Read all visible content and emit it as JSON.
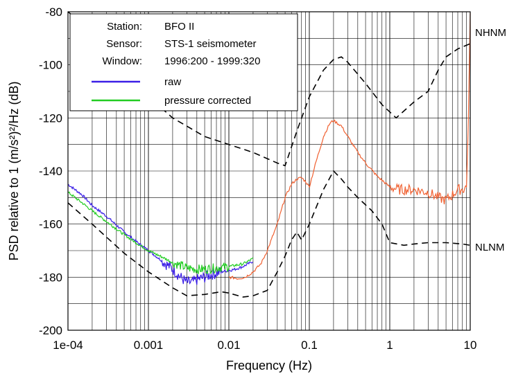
{
  "chart_data": {
    "type": "line",
    "xlabel": "Frequency (Hz)",
    "ylabel": "PSD relative to 1 (m/s²)²/Hz (dB)",
    "x_scale": "log",
    "xlim": [
      0.0001,
      10
    ],
    "ylim": [
      -200,
      -80
    ],
    "x_ticks": [
      {
        "value": 0.0001,
        "label": "1e-04"
      },
      {
        "value": 0.001,
        "label": "0.001"
      },
      {
        "value": 0.01,
        "label": "0.01"
      },
      {
        "value": 0.1,
        "label": "0.1"
      },
      {
        "value": 1,
        "label": "1"
      },
      {
        "value": 10,
        "label": "10"
      }
    ],
    "y_ticks": [
      {
        "value": -80,
        "label": "-80"
      },
      {
        "value": -100,
        "label": "-100"
      },
      {
        "value": -120,
        "label": "-120"
      },
      {
        "value": -140,
        "label": "-140"
      },
      {
        "value": -160,
        "label": "-160"
      },
      {
        "value": -180,
        "label": "-180"
      },
      {
        "value": -200,
        "label": "-200"
      }
    ],
    "grid": true,
    "legend": {
      "placement": "top-left",
      "rows": [
        {
          "key": "Station:",
          "value": "BFO II"
        },
        {
          "key": "Sensor:",
          "value": "STS-1 seismometer"
        },
        {
          "key": "Window:",
          "value": "1996:200 - 1999:320"
        }
      ],
      "entries": [
        {
          "label": "raw",
          "color": "#3a1ee6"
        },
        {
          "label": "pressure corrected",
          "color": "#22cc22"
        }
      ]
    },
    "series": [
      {
        "name": "raw",
        "color": "#3a1ee6",
        "style": "solid",
        "x": [
          0.0001,
          0.00015,
          0.0002,
          0.0003,
          0.0005,
          0.0007,
          0.001,
          0.0015,
          0.002,
          0.0025,
          0.003,
          0.0035,
          0.004,
          0.005,
          0.006,
          0.008,
          0.01,
          0.012,
          0.015,
          0.02
        ],
        "y": [
          -145,
          -149,
          -153,
          -157,
          -163,
          -166.5,
          -170,
          -174,
          -177,
          -180,
          -182,
          -182,
          -181,
          -180,
          -179,
          -178,
          -177.5,
          -177,
          -176,
          -174
        ]
      },
      {
        "name": "pressure corrected",
        "color": "#22cc22",
        "style": "solid",
        "x": [
          0.0001,
          0.00015,
          0.0002,
          0.0003,
          0.0005,
          0.0007,
          0.001,
          0.0015,
          0.002,
          0.003,
          0.004,
          0.005,
          0.007,
          0.01,
          0.015,
          0.02
        ],
        "y": [
          -148,
          -152,
          -155,
          -159,
          -164,
          -167,
          -170,
          -172.5,
          -174.5,
          -176.5,
          -177,
          -177,
          -176.5,
          -176,
          -175,
          -173
        ]
      },
      {
        "name": "",
        "color": "#f06030",
        "style": "solid",
        "x": [
          0.01,
          0.013,
          0.016,
          0.02,
          0.025,
          0.03,
          0.04,
          0.05,
          0.06,
          0.07,
          0.08,
          0.09,
          0.1,
          0.12,
          0.15,
          0.18,
          0.2,
          0.25,
          0.3,
          0.4,
          0.5,
          0.7,
          1,
          1.3,
          2,
          3,
          4,
          5,
          6,
          7,
          8,
          9,
          9.5,
          10
        ],
        "y": [
          -180,
          -180.5,
          -180,
          -178,
          -175,
          -170,
          -160,
          -150,
          -145,
          -143,
          -142.5,
          -144,
          -146,
          -137,
          -127,
          -122,
          -121,
          -123,
          -127,
          -133,
          -137,
          -142,
          -146,
          -147,
          -147,
          -148,
          -150,
          -151,
          -149,
          -147,
          -147,
          -146,
          -120,
          -80
        ]
      },
      {
        "name": "NHNM",
        "color": "#000000",
        "style": "dashed",
        "x": [
          0.0001,
          0.0003,
          0.0007,
          0.001,
          0.002,
          0.005,
          0.01,
          0.02,
          0.04,
          0.05,
          0.07,
          0.1,
          0.15,
          0.2,
          0.25,
          0.3,
          0.5,
          0.8,
          1.2,
          2,
          3,
          4,
          5,
          7,
          10
        ],
        "y": [
          -78,
          -92,
          -105,
          -112,
          -120,
          -127,
          -130,
          -133,
          -137,
          -138,
          -125,
          -112,
          -102,
          -98,
          -97,
          -99,
          -107,
          -115,
          -120,
          -114,
          -110,
          -102,
          -97,
          -94,
          -92
        ]
      },
      {
        "name": "NLNM",
        "color": "#000000",
        "style": "dashed",
        "x": [
          0.0001,
          0.0002,
          0.0005,
          0.001,
          0.002,
          0.003,
          0.005,
          0.008,
          0.01,
          0.015,
          0.02,
          0.03,
          0.04,
          0.05,
          0.06,
          0.07,
          0.08,
          0.1,
          0.15,
          0.2,
          0.25,
          0.3,
          0.4,
          0.6,
          0.8,
          1,
          1.5,
          2,
          3,
          5,
          8,
          10
        ],
        "y": [
          -152,
          -160,
          -171,
          -178,
          -184,
          -187,
          -186.5,
          -185.5,
          -186,
          -187.5,
          -187,
          -185,
          -178,
          -172,
          -166,
          -163,
          -166,
          -160,
          -147,
          -140,
          -143,
          -146,
          -150,
          -155,
          -160,
          -167,
          -168,
          -167.5,
          -167,
          -167,
          -167.5,
          -168
        ]
      }
    ],
    "annotations": [
      {
        "text": "NHNM",
        "near_series": "NHNM"
      },
      {
        "text": "NLNM",
        "near_series": "NLNM"
      }
    ]
  }
}
